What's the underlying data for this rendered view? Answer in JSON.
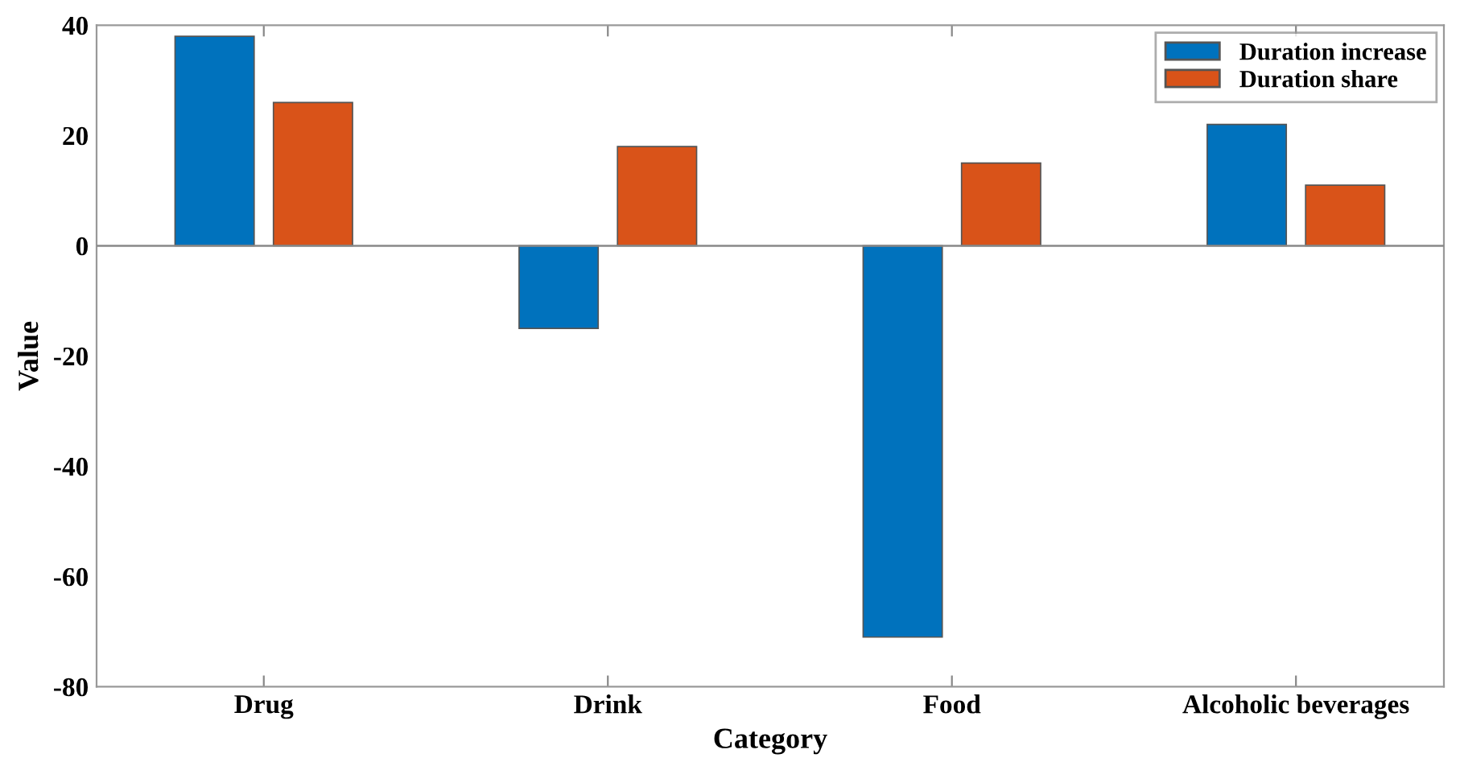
{
  "chart_data": {
    "type": "bar",
    "xlabel": "Category",
    "ylabel": "Value",
    "categories": [
      "Drug",
      "Drink",
      "Food",
      "Alcoholic beverages"
    ],
    "series": [
      {
        "name": "Duration increase",
        "color": "#0072bd",
        "values": [
          38,
          -15,
          -71,
          22
        ]
      },
      {
        "name": "Duration share",
        "color": "#d95319",
        "values": [
          26,
          18,
          15,
          11
        ]
      }
    ],
    "ylim": [
      -80,
      40
    ],
    "yticks": [
      -80,
      -60,
      -40,
      -20,
      0,
      20,
      40
    ],
    "ref_lines": [
      {
        "axis": "y",
        "value": 0,
        "color": "#888888"
      }
    ],
    "legend": "top right"
  }
}
